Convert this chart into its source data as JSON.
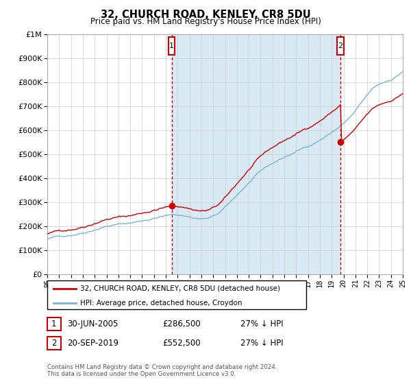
{
  "title": "32, CHURCH ROAD, KENLEY, CR8 5DU",
  "subtitle": "Price paid vs. HM Land Registry's House Price Index (HPI)",
  "sale1_date": "30-JUN-2005",
  "sale1_price": 286500,
  "sale1_label": "1",
  "sale1_x": 2005.5,
  "sale2_date": "20-SEP-2019",
  "sale2_price": 552500,
  "sale2_label": "2",
  "sale2_x": 2019.75,
  "legend_line1": "32, CHURCH ROAD, KENLEY, CR8 5DU (detached house)",
  "legend_line2": "HPI: Average price, detached house, Croydon",
  "footer": "Contains HM Land Registry data © Crown copyright and database right 2024.\nThis data is licensed under the Open Government Licence v3.0.",
  "hpi_color": "#7ab4d8",
  "price_color": "#cc0000",
  "vline_color": "#cc0000",
  "fill_color": "#daeaf5",
  "background_color": "#ffffff",
  "grid_color": "#cccccc",
  "ylim": [
    0,
    1000000
  ],
  "xlim_start": 1995,
  "xlim_end": 2025
}
